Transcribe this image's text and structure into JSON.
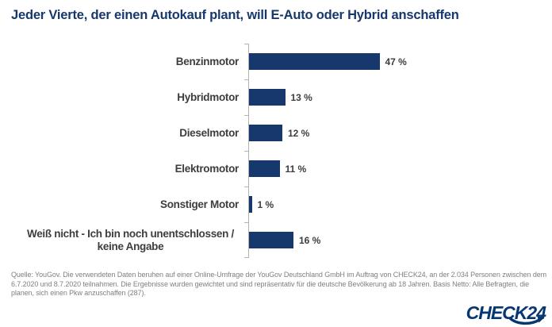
{
  "title": "Jeder Vierte, der einen Autokauf plant, will E-Auto oder Hybrid anschaffen",
  "chart_data": {
    "type": "bar",
    "orientation": "horizontal",
    "title": "Jeder Vierte, der einen Autokauf plant, will E-Auto oder Hybrid anschaffen",
    "categories": [
      "Benzinmotor",
      "Hybridmotor",
      "Dieselmotor",
      "Elektromotor",
      "Sonstiger Motor",
      "Weiß nicht - Ich bin noch unentschlossen / keine Angabe"
    ],
    "values": [
      47,
      13,
      12,
      11,
      1,
      16
    ],
    "value_labels": [
      "47 %",
      "13 %",
      "12 %",
      "11 %",
      "1 %",
      "16 %"
    ],
    "unit": "%",
    "xlim": [
      0,
      50
    ],
    "grid": false,
    "legend": false,
    "bar_color": "#17386d",
    "axis_color": "#b3b3b3"
  },
  "source_note": "Quelle: YouGov. Die verwendeten Daten beruhen auf einer Online-Umfrage der YouGov Deutschland GmbH im Auftrag von CHECK24, an der 2.034 Personen zwischen dem 6.7.2020 und 8.7.2020 teilnahmen. Die Ergebnisse wurden gewichtet und sind repräsentativ für die deutsche Bevölkerung ab 18 Jahren. Basis Netto: Alle Befragten, die planen, sich einen Pkw anzuschaffen (287).",
  "logo": {
    "text": "CHECK24",
    "color": "#063773"
  },
  "colors": {
    "title": "#17386d",
    "bar": "#17386d",
    "axis": "#b3b3b3",
    "label": "#3d3d3d",
    "source": "#808080"
  }
}
